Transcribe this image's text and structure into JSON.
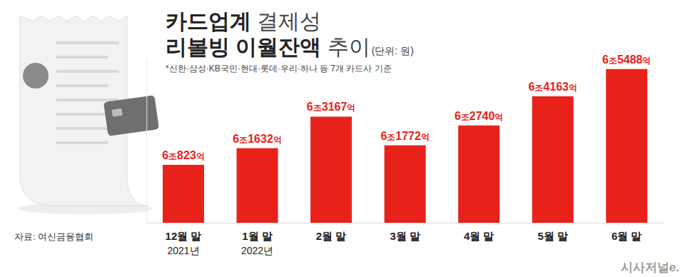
{
  "chart_data": {
    "type": "bar",
    "title": "카드업계 결제성 리볼빙 이월잔액 추이",
    "unit": "(단위: 원)",
    "subtitle": "*신한·삼성·KB국민·현대·롯데·우리·하나 등 7개 카드사 기준",
    "source": "자료: 여신금융협회",
    "logo": "시사저널e.",
    "categories": [
      "12월 말\n2021년",
      "1월 말\n2022년",
      "2월 말",
      "3월 말",
      "4월 말",
      "5월 말",
      "6월 말"
    ],
    "values": [
      60823,
      61632,
      63167,
      61772,
      62740,
      64163,
      65488
    ],
    "value_labels": [
      "6조823억",
      "6조1632억",
      "6조3167억",
      "6조1772억",
      "6조2740억",
      "6조4163억",
      "6조5488억"
    ],
    "color": "#e8221b",
    "ylim": [
      58000,
      66000
    ],
    "yticks": [],
    "tick_labels": "x",
    "grid": false,
    "data_labels": true
  }
}
